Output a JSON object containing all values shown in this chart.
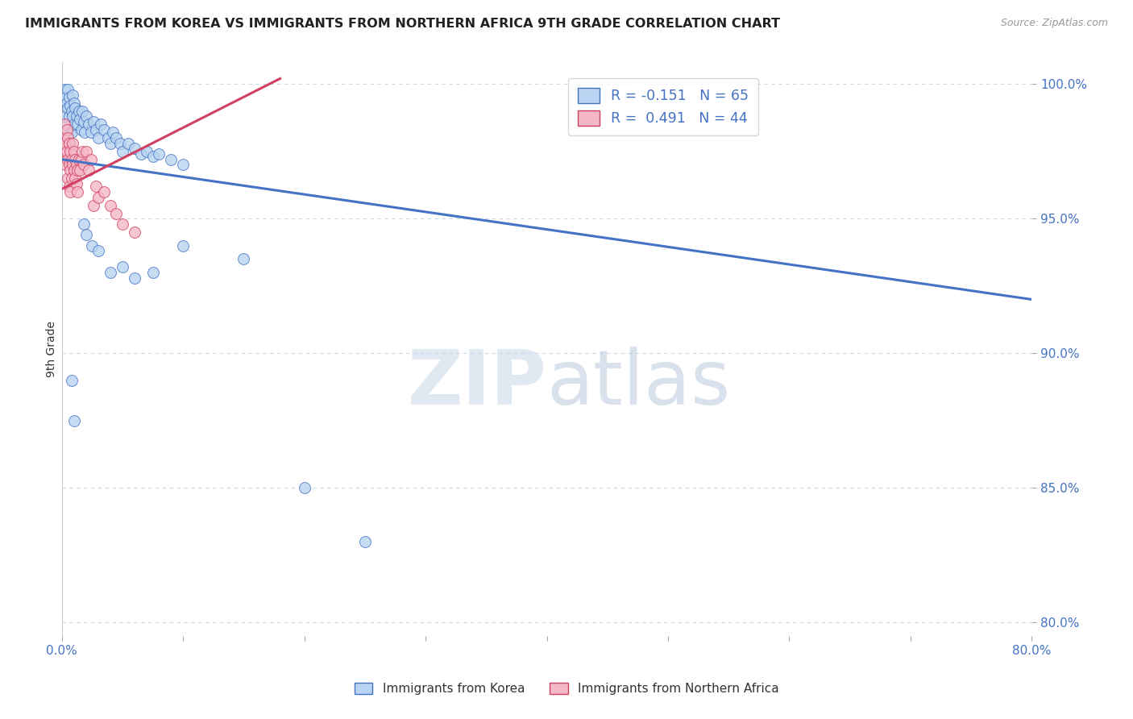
{
  "title": "IMMIGRANTS FROM KOREA VS IMMIGRANTS FROM NORTHERN AFRICA 9TH GRADE CORRELATION CHART",
  "source": "Source: ZipAtlas.com",
  "ylabel": "9th Grade",
  "ylabel_right_labels": [
    "100.0%",
    "95.0%",
    "90.0%",
    "85.0%",
    "80.0%"
  ],
  "ylabel_right_values": [
    1.0,
    0.95,
    0.9,
    0.85,
    0.8
  ],
  "xmin": 0.0,
  "xmax": 0.8,
  "ymin": 0.795,
  "ymax": 1.008,
  "korea_R": -0.151,
  "korea_N": 65,
  "africa_R": 0.491,
  "africa_N": 44,
  "legend_korea_label": "Immigrants from Korea",
  "legend_africa_label": "Immigrants from Northern Africa",
  "korea_color": "#b8d4f0",
  "africa_color": "#f5b8c8",
  "korea_line_color": "#4472c4",
  "africa_line_color": "#d04060",
  "korea_trend_x": [
    0.0,
    0.8
  ],
  "korea_trend_y": [
    0.972,
    0.92
  ],
  "africa_trend_x": [
    0.0,
    0.18
  ],
  "africa_trend_y": [
    0.961,
    1.002
  ],
  "korea_scatter": [
    [
      0.002,
      0.998
    ],
    [
      0.003,
      0.995
    ],
    [
      0.003,
      0.988
    ],
    [
      0.004,
      0.993
    ],
    [
      0.004,
      0.985
    ],
    [
      0.005,
      0.998
    ],
    [
      0.005,
      0.991
    ],
    [
      0.005,
      0.98
    ],
    [
      0.006,
      0.995
    ],
    [
      0.006,
      0.988
    ],
    [
      0.006,
      0.978
    ],
    [
      0.007,
      0.992
    ],
    [
      0.007,
      0.983
    ],
    [
      0.007,
      0.975
    ],
    [
      0.008,
      0.99
    ],
    [
      0.008,
      0.982
    ],
    [
      0.009,
      0.996
    ],
    [
      0.009,
      0.988
    ],
    [
      0.01,
      0.993
    ],
    [
      0.01,
      0.985
    ],
    [
      0.011,
      0.991
    ],
    [
      0.012,
      0.988
    ],
    [
      0.013,
      0.985
    ],
    [
      0.014,
      0.99
    ],
    [
      0.015,
      0.987
    ],
    [
      0.016,
      0.983
    ],
    [
      0.017,
      0.99
    ],
    [
      0.018,
      0.986
    ],
    [
      0.019,
      0.982
    ],
    [
      0.02,
      0.988
    ],
    [
      0.022,
      0.985
    ],
    [
      0.024,
      0.982
    ],
    [
      0.026,
      0.986
    ],
    [
      0.028,
      0.983
    ],
    [
      0.03,
      0.98
    ],
    [
      0.032,
      0.985
    ],
    [
      0.035,
      0.983
    ],
    [
      0.038,
      0.98
    ],
    [
      0.04,
      0.978
    ],
    [
      0.042,
      0.982
    ],
    [
      0.045,
      0.98
    ],
    [
      0.048,
      0.978
    ],
    [
      0.05,
      0.975
    ],
    [
      0.055,
      0.978
    ],
    [
      0.06,
      0.976
    ],
    [
      0.065,
      0.974
    ],
    [
      0.07,
      0.975
    ],
    [
      0.075,
      0.973
    ],
    [
      0.08,
      0.974
    ],
    [
      0.09,
      0.972
    ],
    [
      0.1,
      0.97
    ],
    [
      0.008,
      0.89
    ],
    [
      0.01,
      0.875
    ],
    [
      0.018,
      0.948
    ],
    [
      0.02,
      0.944
    ],
    [
      0.025,
      0.94
    ],
    [
      0.03,
      0.938
    ],
    [
      0.04,
      0.93
    ],
    [
      0.05,
      0.932
    ],
    [
      0.06,
      0.928
    ],
    [
      0.075,
      0.93
    ],
    [
      0.1,
      0.94
    ],
    [
      0.15,
      0.935
    ],
    [
      0.2,
      0.85
    ],
    [
      0.25,
      0.83
    ]
  ],
  "africa_scatter": [
    [
      0.001,
      0.98
    ],
    [
      0.002,
      0.975
    ],
    [
      0.002,
      0.985
    ],
    [
      0.003,
      0.978
    ],
    [
      0.003,
      0.97
    ],
    [
      0.004,
      0.983
    ],
    [
      0.004,
      0.975
    ],
    [
      0.005,
      0.98
    ],
    [
      0.005,
      0.972
    ],
    [
      0.005,
      0.965
    ],
    [
      0.006,
      0.978
    ],
    [
      0.006,
      0.97
    ],
    [
      0.006,
      0.962
    ],
    [
      0.007,
      0.975
    ],
    [
      0.007,
      0.968
    ],
    [
      0.007,
      0.96
    ],
    [
      0.008,
      0.972
    ],
    [
      0.008,
      0.965
    ],
    [
      0.009,
      0.978
    ],
    [
      0.009,
      0.97
    ],
    [
      0.01,
      0.975
    ],
    [
      0.01,
      0.968
    ],
    [
      0.011,
      0.972
    ],
    [
      0.011,
      0.965
    ],
    [
      0.012,
      0.97
    ],
    [
      0.012,
      0.963
    ],
    [
      0.013,
      0.968
    ],
    [
      0.013,
      0.96
    ],
    [
      0.014,
      0.972
    ],
    [
      0.015,
      0.968
    ],
    [
      0.016,
      0.972
    ],
    [
      0.017,
      0.975
    ],
    [
      0.018,
      0.97
    ],
    [
      0.02,
      0.975
    ],
    [
      0.022,
      0.968
    ],
    [
      0.024,
      0.972
    ],
    [
      0.026,
      0.955
    ],
    [
      0.028,
      0.962
    ],
    [
      0.03,
      0.958
    ],
    [
      0.035,
      0.96
    ],
    [
      0.04,
      0.955
    ],
    [
      0.045,
      0.952
    ],
    [
      0.05,
      0.948
    ],
    [
      0.06,
      0.945
    ]
  ],
  "watermark_zip": "ZIP",
  "watermark_atlas": "atlas",
  "background_color": "#ffffff",
  "grid_color": "#c8d8e8",
  "tick_label_color": "#4472c4"
}
